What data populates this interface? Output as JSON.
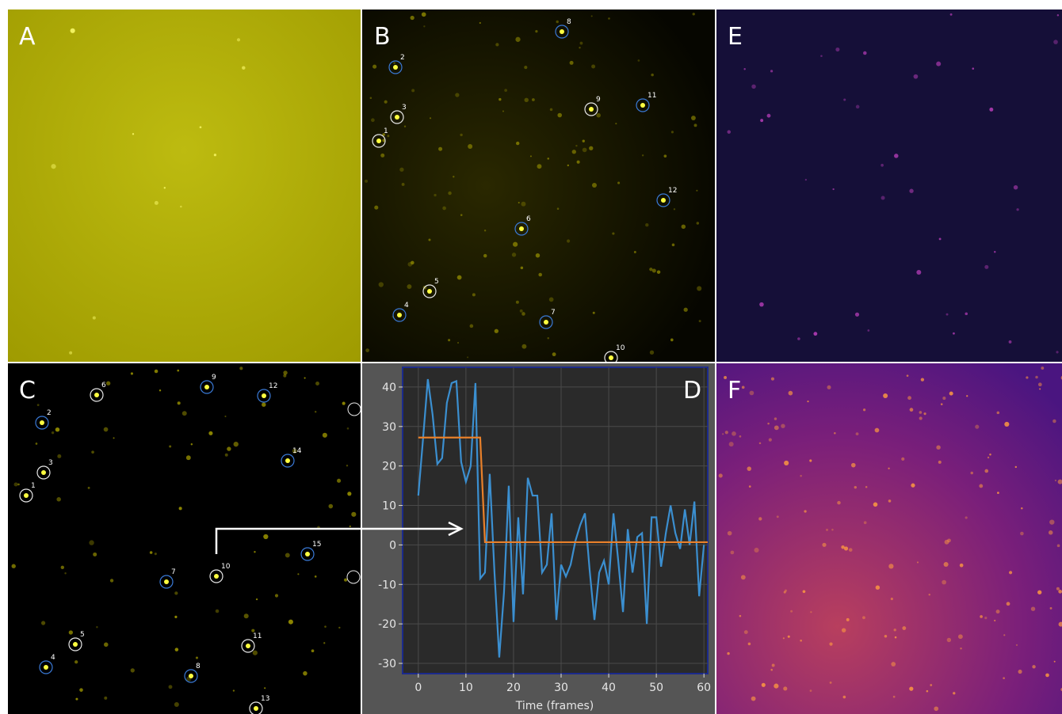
{
  "panels": {
    "a": {
      "letter": "A"
    },
    "b": {
      "letter": "B",
      "spots": [
        "1",
        "2",
        "3",
        "4",
        "5",
        "6",
        "7",
        "8",
        "9",
        "10",
        "11",
        "12"
      ]
    },
    "c": {
      "letter": "C",
      "spots": [
        "1",
        "2",
        "3",
        "4",
        "5",
        "6",
        "7",
        "8",
        "9",
        "10",
        "11",
        "12",
        "13",
        "14",
        "15"
      ]
    },
    "e": {
      "letter": "E"
    },
    "f": {
      "letter": "F"
    }
  },
  "chart_data": {
    "type": "line",
    "annotation": "D",
    "x_label": "Time (frames)",
    "xlim": [
      -3.3,
      60.8
    ],
    "xticks": [
      0,
      10,
      20,
      30,
      40,
      50,
      60
    ],
    "ylim": [
      -32.6,
      45
    ],
    "yticks": [
      -30,
      -20,
      -10,
      0,
      10,
      20,
      30,
      40
    ],
    "grid": true,
    "series": [
      {
        "color": "#3b8fd0",
        "x": [
          0,
          1,
          2,
          3,
          4,
          5,
          6,
          7,
          8,
          9,
          10,
          11,
          12,
          13,
          14,
          15,
          16,
          17,
          18,
          19,
          20,
          21,
          22,
          23,
          24,
          25,
          26,
          27,
          28,
          29,
          30,
          31,
          32,
          33,
          34,
          35,
          36,
          37,
          38,
          39,
          40,
          41,
          42,
          43,
          44,
          45,
          46,
          47,
          48,
          49,
          50,
          51,
          52,
          53,
          54,
          55,
          56,
          57,
          58,
          59,
          60
        ],
        "values": [
          12.5,
          27,
          42,
          33,
          20.5,
          22,
          36,
          41,
          41.5,
          21,
          16,
          20,
          41,
          -8.5,
          -7,
          18,
          -7,
          -28.5,
          -12,
          15,
          -19.5,
          7,
          -12.5,
          17,
          12.5,
          12.5,
          -7,
          -5,
          8,
          -19,
          -5,
          -8,
          -5,
          1,
          5,
          8,
          -6.5,
          -19,
          -7,
          -4,
          -10,
          8,
          -4,
          -17,
          4,
          -7,
          2,
          3,
          -20,
          7,
          7,
          -5.5,
          3,
          10,
          3,
          -1,
          9,
          0,
          11,
          -13,
          0
        ]
      },
      {
        "color": "#e8802a",
        "x": [
          0,
          13,
          14,
          60.8
        ],
        "values": [
          27.2,
          27.2,
          0.7,
          0.7
        ]
      }
    ]
  }
}
